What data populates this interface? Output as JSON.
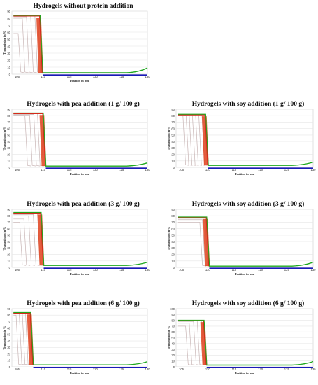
{
  "figure": {
    "x_axis_label": "Position in mm",
    "y_axis_label": "Transmission in %",
    "colors": {
      "first_profile": "#d42a1a",
      "last_profile": "#1fa81f",
      "intermediate": "#c8b4b4",
      "fill_red": "#e0421d",
      "fill_green": "#32b832",
      "baseline": "#1a1ab8",
      "grid": "#e6e6e6"
    }
  },
  "chart_data": [
    {
      "type": "line",
      "title": "Hydrogels without protein addition",
      "xlabel": "Position in mm",
      "ylabel": "Transmission in %",
      "xlim": [
        104,
        130
      ],
      "ylim": [
        0,
        90
      ],
      "x_ticks": [
        105,
        110,
        115,
        120,
        125,
        130
      ],
      "y_ticks": [
        0,
        10,
        20,
        30,
        40,
        50,
        60,
        70,
        80,
        90
      ],
      "grid": true,
      "phase_boundary_mm": 109.6,
      "plateau_percent": 84,
      "baseline_percent": 2,
      "end_rise_percent": 9,
      "intermediate_profiles": [
        {
          "drop_mm": 105.2,
          "level": 58
        },
        {
          "drop_mm": 106.0,
          "level": 80
        },
        {
          "drop_mm": 106.8,
          "level": 82
        },
        {
          "drop_mm": 107.6,
          "level": 83
        },
        {
          "drop_mm": 108.4,
          "level": 84
        },
        {
          "drop_mm": 109.0,
          "level": 84
        }
      ]
    },
    {
      "type": "line",
      "title": "Hydrogels with pea addition (1 g/ 100 g)",
      "xlabel": "Position in mm",
      "ylabel": "Transmission in %",
      "xlim": [
        104,
        130
      ],
      "ylim": [
        0,
        90
      ],
      "x_ticks": [
        105,
        110,
        115,
        120,
        125,
        130
      ],
      "y_ticks": [
        0,
        10,
        20,
        30,
        40,
        50,
        60,
        70,
        80,
        90
      ],
      "grid": true,
      "phase_boundary_mm": 110.2,
      "plateau_percent": 84,
      "baseline_percent": 2,
      "end_rise_percent": 7,
      "intermediate_profiles": [
        {
          "drop_mm": 106.5,
          "level": 80
        },
        {
          "drop_mm": 107.4,
          "level": 81
        },
        {
          "drop_mm": 108.2,
          "level": 82
        },
        {
          "drop_mm": 108.9,
          "level": 83
        },
        {
          "drop_mm": 109.5,
          "level": 84
        }
      ]
    },
    {
      "type": "line",
      "title": "Hydrogels with soy addition (1 g/ 100 g)",
      "xlabel": "Position in mm",
      "ylabel": "Transmission in %",
      "xlim": [
        104,
        130
      ],
      "ylim": [
        0,
        90
      ],
      "x_ticks": [
        105,
        110,
        115,
        120,
        125,
        130
      ],
      "y_ticks": [
        0,
        10,
        20,
        30,
        40,
        50,
        60,
        70,
        80,
        90
      ],
      "grid": true,
      "phase_boundary_mm": 109.8,
      "plateau_percent": 82,
      "baseline_percent": 3,
      "end_rise_percent": 8,
      "intermediate_profiles": [
        {
          "drop_mm": 105.3,
          "level": 80
        },
        {
          "drop_mm": 105.9,
          "level": 80
        },
        {
          "drop_mm": 106.5,
          "level": 81
        },
        {
          "drop_mm": 107.1,
          "level": 81
        },
        {
          "drop_mm": 107.7,
          "level": 81
        },
        {
          "drop_mm": 108.3,
          "level": 82
        },
        {
          "drop_mm": 108.9,
          "level": 82
        },
        {
          "drop_mm": 109.4,
          "level": 82
        }
      ]
    },
    {
      "type": "line",
      "title": "Hydrogels with pea addition (3 g/ 100 g)",
      "xlabel": "Position in mm",
      "ylabel": "Transmission in %",
      "xlim": [
        104,
        130
      ],
      "ylim": [
        0,
        90
      ],
      "x_ticks": [
        105,
        110,
        115,
        120,
        125,
        130
      ],
      "y_ticks": [
        0,
        10,
        20,
        30,
        40,
        50,
        60,
        70,
        80,
        90
      ],
      "grid": true,
      "phase_boundary_mm": 109.8,
      "plateau_percent": 85,
      "baseline_percent": 3,
      "end_rise_percent": 8,
      "intermediate_profiles": [
        {
          "drop_mm": 105.5,
          "level": 70
        },
        {
          "drop_mm": 106.3,
          "level": 75
        },
        {
          "drop_mm": 107.2,
          "level": 80
        },
        {
          "drop_mm": 108.1,
          "level": 82
        },
        {
          "drop_mm": 108.9,
          "level": 84
        }
      ]
    },
    {
      "type": "line",
      "title": "Hydrogels with soy addition (3 g/ 100 g)",
      "xlabel": "Position in mm",
      "ylabel": "Transmission in %",
      "xlim": [
        104,
        130
      ],
      "ylim": [
        0,
        90
      ],
      "x_ticks": [
        105,
        110,
        115,
        120,
        125,
        130
      ],
      "y_ticks": [
        0,
        10,
        20,
        30,
        40,
        50,
        60,
        70,
        80,
        90
      ],
      "grid": true,
      "phase_boundary_mm": 110.0,
      "plateau_percent": 78,
      "baseline_percent": 2,
      "end_rise_percent": 8,
      "intermediate_profiles": [
        {
          "drop_mm": 108.5,
          "level": 70
        },
        {
          "drop_mm": 109.0,
          "level": 74
        },
        {
          "drop_mm": 109.5,
          "level": 76
        }
      ]
    },
    {
      "type": "line",
      "title": "Hydrogels with pea addition (6 g/ 100 g)",
      "xlabel": "Position in mm",
      "ylabel": "Transmission in %",
      "xlim": [
        104,
        130
      ],
      "ylim": [
        0,
        90
      ],
      "x_ticks": [
        105,
        110,
        115,
        120,
        125,
        130
      ],
      "y_ticks": [
        0,
        10,
        20,
        30,
        40,
        50,
        60,
        70,
        80,
        90
      ],
      "grid": true,
      "phase_boundary_mm": 107.8,
      "plateau_percent": 84,
      "baseline_percent": 3,
      "end_rise_percent": 8,
      "intermediate_profiles": [
        {
          "drop_mm": 104.8,
          "level": 80
        },
        {
          "drop_mm": 105.4,
          "level": 82
        },
        {
          "drop_mm": 106.0,
          "level": 83
        },
        {
          "drop_mm": 106.6,
          "level": 84
        },
        {
          "drop_mm": 107.2,
          "level": 84
        }
      ]
    },
    {
      "type": "line",
      "title": "Hydrogels with soy addition (6 g/ 100 g)",
      "xlabel": "Position in mm",
      "ylabel": "Transmission in %",
      "xlim": [
        104,
        130
      ],
      "ylim": [
        0,
        100
      ],
      "x_ticks": [
        105,
        110,
        115,
        120,
        125,
        130
      ],
      "y_ticks": [
        0,
        10,
        20,
        30,
        40,
        50,
        60,
        70,
        80,
        90,
        100
      ],
      "grid": true,
      "phase_boundary_mm": 109.5,
      "plateau_percent": 80,
      "baseline_percent": 3,
      "end_rise_percent": 9,
      "intermediate_profiles": [
        {
          "drop_mm": 105.8,
          "level": 70
        },
        {
          "drop_mm": 106.5,
          "level": 75
        },
        {
          "drop_mm": 107.3,
          "level": 78
        },
        {
          "drop_mm": 108.0,
          "level": 80
        },
        {
          "drop_mm": 108.8,
          "level": 80
        }
      ]
    }
  ]
}
